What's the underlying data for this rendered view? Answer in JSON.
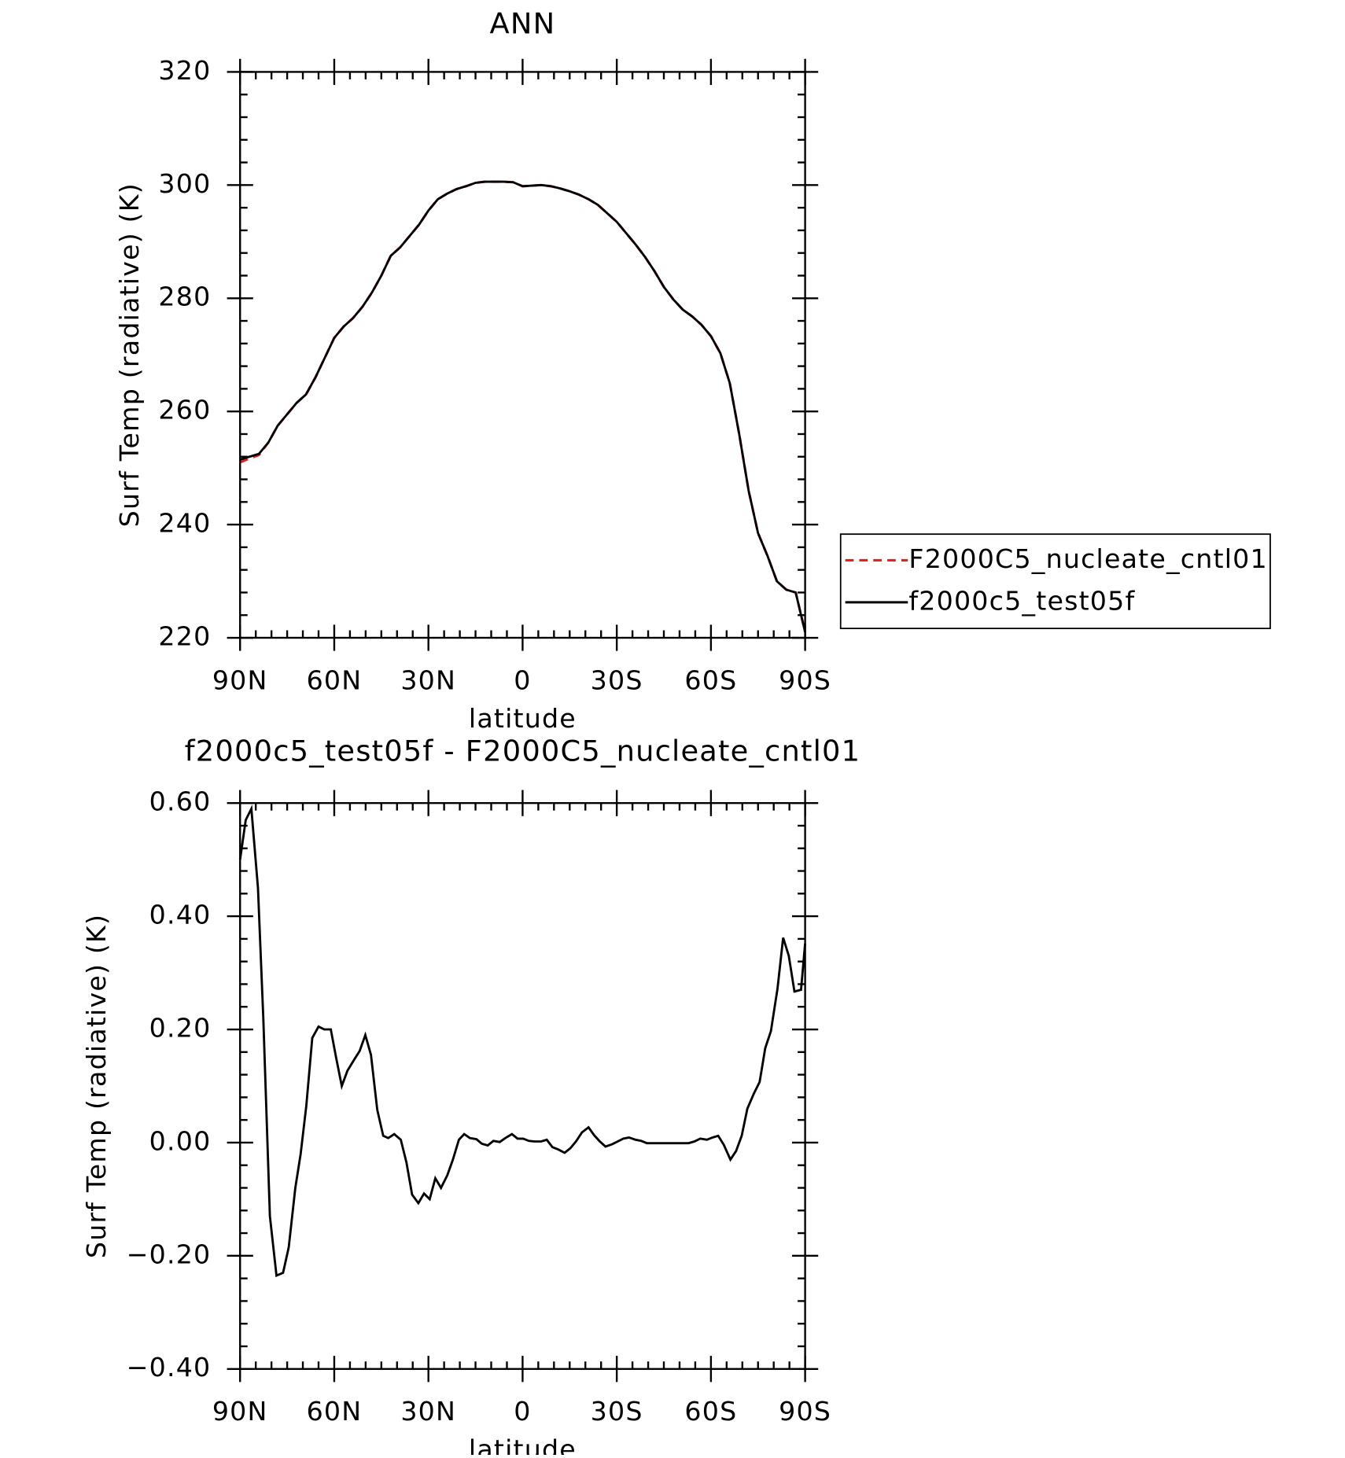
{
  "chart_data": [
    {
      "type": "line",
      "title": "ANN",
      "xlabel": "latitude",
      "ylabel": "Surf Temp (radiative) (K)",
      "x": [
        90,
        87,
        84,
        81,
        78,
        75,
        72,
        69,
        66,
        63,
        60,
        57,
        54,
        51,
        48,
        45,
        42,
        39,
        36,
        33,
        30,
        27,
        24,
        21,
        18,
        15,
        12,
        9,
        6,
        3,
        0,
        -3,
        -6,
        -9,
        -12,
        -15,
        -18,
        -21,
        -24,
        -27,
        -30,
        -33,
        -36,
        -39,
        -42,
        -45,
        -48,
        -51,
        -54,
        -57,
        -60,
        -63,
        -66,
        -69,
        -72,
        -75,
        -78,
        -81,
        -84,
        -87,
        -90
      ],
      "series": [
        {
          "name": "F2000C5_nucleate_cntl01",
          "color": "#e8201c",
          "dash": "dashed",
          "values": [
            251,
            251.7,
            252.3,
            254.5,
            257.5,
            259.5,
            261.5,
            263,
            266,
            269.5,
            273,
            275,
            276.5,
            278.5,
            281,
            284,
            287.5,
            289,
            291,
            293,
            295.5,
            297.5,
            298.5,
            299.3,
            299.8,
            300.4,
            300.6,
            300.6,
            300.6,
            300.5,
            299.8,
            299.9,
            300,
            299.8,
            299.4,
            298.9,
            298.3,
            297.5,
            296.5,
            295,
            293.5,
            291.5,
            289.5,
            287.3,
            284.8,
            282,
            279.8,
            278,
            276.8,
            275.3,
            273.3,
            270.3,
            265,
            256,
            246,
            238.5,
            234.5,
            230,
            228.5,
            228,
            221
          ]
        },
        {
          "name": "f2000c5_test05f",
          "color": "#000000",
          "dash": "solid",
          "values": [
            251.5,
            252,
            252.5,
            254.5,
            257.5,
            259.5,
            261.5,
            263,
            266,
            269.5,
            273,
            275,
            276.5,
            278.5,
            281,
            284,
            287.5,
            289,
            291,
            293,
            295.5,
            297.5,
            298.5,
            299.3,
            299.8,
            300.4,
            300.6,
            300.6,
            300.6,
            300.5,
            299.8,
            299.9,
            300,
            299.8,
            299.4,
            298.9,
            298.3,
            297.5,
            296.5,
            295,
            293.5,
            291.5,
            289.5,
            287.3,
            284.8,
            282,
            279.8,
            278,
            276.8,
            275.3,
            273.3,
            270.3,
            265,
            256,
            246,
            238.5,
            234.5,
            230,
            228.5,
            228,
            221
          ]
        }
      ],
      "xlim": [
        90,
        -90
      ],
      "xticks": [
        {
          "value": 90,
          "label": "90N"
        },
        {
          "value": 60,
          "label": "60N"
        },
        {
          "value": 30,
          "label": "30N"
        },
        0,
        {
          "value": -30,
          "label": "30S"
        },
        {
          "value": -60,
          "label": "60S"
        },
        {
          "value": -90,
          "label": "90S"
        }
      ],
      "ylim": [
        220,
        320
      ],
      "yticks": [
        220,
        240,
        260,
        280,
        300,
        320
      ],
      "legend": "right"
    },
    {
      "type": "line",
      "title": "f2000c5_test05f - F2000C5_nucleate_cntl01",
      "xlabel": "latitude",
      "ylabel": "Surf Temp (radiative) (K)",
      "x": [
        90,
        88.2,
        86.4,
        84.3,
        82.6,
        80.5,
        78.4,
        76.3,
        74.5,
        72.4,
        70.7,
        68.9,
        67,
        65,
        63.2,
        61.1,
        59.4,
        57.6,
        55.8,
        53.6,
        51.9,
        50.1,
        48.3,
        46.3,
        44.4,
        42.8,
        40.9,
        38.8,
        37,
        35.2,
        33.2,
        31.4,
        29.6,
        27.8,
        26,
        24,
        22.2,
        20.3,
        18.6,
        16.8,
        14.7,
        13,
        11.1,
        9.3,
        7.3,
        5.5,
        3.4,
        1.6,
        -0.2,
        -2,
        -3.8,
        -5.9,
        -7.7,
        -9.5,
        -11.3,
        -13.4,
        -15.2,
        -17,
        -18.9,
        -21,
        -22.8,
        -24.6,
        -26.4,
        -28.5,
        -30.3,
        -32.1,
        -33.9,
        -36,
        -37.8,
        -39.6,
        -41.5,
        -43.6,
        -45.4,
        -47.2,
        -49,
        -51.1,
        -52.9,
        -54.7,
        -56.6,
        -58.7,
        -60.5,
        -62.3,
        -64.1,
        -66.2,
        -68,
        -69.8,
        -71.6,
        -73.7,
        -75.5,
        -77.3,
        -79.1,
        -81.2,
        -83,
        -84.8,
        -86.6,
        -88.7,
        -90
      ],
      "series": [
        {
          "color": "#000000",
          "dash": "solid",
          "values": [
            0.5,
            0.57,
            0.59,
            0.45,
            0.22,
            -0.13,
            -0.235,
            -0.23,
            -0.185,
            -0.08,
            -0.02,
            0.065,
            0.185,
            0.205,
            0.2,
            0.2,
            0.15,
            0.1,
            0.127,
            0.147,
            0.162,
            0.19,
            0.155,
            0.058,
            0.012,
            0.008,
            0.015,
            0.005,
            -0.035,
            -0.092,
            -0.107,
            -0.09,
            -0.1,
            -0.063,
            -0.08,
            -0.058,
            -0.03,
            0.005,
            0.015,
            0.008,
            0.006,
            -0.002,
            -0.005,
            0.003,
            0.001,
            0.008,
            0.015,
            0.007,
            0.007,
            0.003,
            0.002,
            0.002,
            0.005,
            -0.008,
            -0.012,
            -0.018,
            -0.01,
            0.002,
            0.018,
            0.027,
            0.013,
            0.002,
            -0.007,
            -0.003,
            0.002,
            0.007,
            0.009,
            0.005,
            0.003,
            -0.001,
            -0.001,
            -0.001,
            -0.001,
            -0.001,
            -0.001,
            -0.001,
            -0.001,
            0.002,
            0.007,
            0.005,
            0.009,
            0.012,
            -0.004,
            -0.03,
            -0.015,
            0.012,
            0.06,
            0.087,
            0.107,
            0.167,
            0.197,
            0.272,
            0.362,
            0.33,
            0.267,
            0.27,
            0.352
          ]
        }
      ],
      "xlim": [
        90,
        -90
      ],
      "xticks": [
        {
          "value": 90,
          "label": "90N"
        },
        {
          "value": 60,
          "label": "60N"
        },
        {
          "value": 30,
          "label": "30N"
        },
        0,
        {
          "value": -30,
          "label": "30S"
        },
        {
          "value": -60,
          "label": "60S"
        },
        {
          "value": -90,
          "label": "90S"
        }
      ],
      "ylim": [
        -0.4,
        0.6
      ],
      "yticks": [
        {
          "value": -0.4,
          "label": "−0.40"
        },
        {
          "value": -0.2,
          "label": "−0.20"
        },
        {
          "value": 0,
          "label": "0.00"
        },
        {
          "value": 0.2,
          "label": "0.20"
        },
        {
          "value": 0.4,
          "label": "0.40"
        },
        {
          "value": 0.6,
          "label": "0.60"
        }
      ]
    }
  ]
}
